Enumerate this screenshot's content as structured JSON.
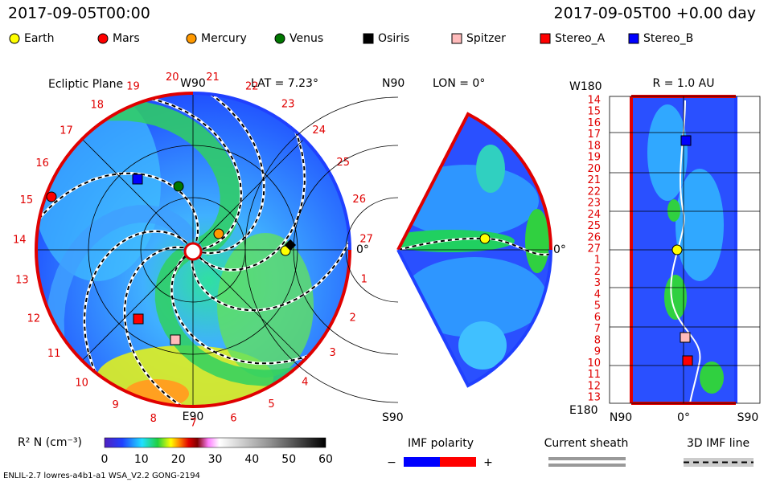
{
  "header": {
    "date": "2017-09-05T00:00",
    "time": "2017-09-05T00 +0.00 day"
  },
  "legend": [
    {
      "label": "Earth",
      "color": "#ffff00",
      "shape": "circle"
    },
    {
      "label": "Mars",
      "color": "#ff0000",
      "shape": "circle"
    },
    {
      "label": "Mercury",
      "color": "#ff9900",
      "shape": "circle"
    },
    {
      "label": "Venus",
      "color": "#007700",
      "shape": "circle"
    },
    {
      "label": "Osiris",
      "color": "#000000",
      "shape": "square"
    },
    {
      "label": "Spitzer",
      "color": "#ffbbbb",
      "shape": "square"
    },
    {
      "label": "Stereo_A",
      "color": "#ff0000",
      "shape": "square"
    },
    {
      "label": "Stereo_B",
      "color": "#0000ff",
      "shape": "square"
    }
  ],
  "ecliptic": {
    "title": "Ecliptic Plane",
    "lat": "LAT = 7.23°",
    "top": "W90",
    "bottom": "E90",
    "right": "0°",
    "day_labels": [
      "1",
      "2",
      "3",
      "4",
      "5",
      "6",
      "7",
      "8",
      "9",
      "10",
      "11",
      "12",
      "13",
      "14",
      "15",
      "16",
      "17",
      "18",
      "19",
      "20",
      "21",
      "22",
      "23",
      "24",
      "25",
      "26",
      "27"
    ]
  },
  "meridional": {
    "top": "N90",
    "lon": "LON = 0°",
    "right": "0°",
    "bottom": "S90"
  },
  "radial": {
    "title": "R = 1.0 AU",
    "top": "W180",
    "bottom": "E180",
    "left": "N90",
    "middle": "0°",
    "right": "S90",
    "day_labels": [
      "14",
      "15",
      "16",
      "17",
      "18",
      "19",
      "20",
      "21",
      "22",
      "23",
      "24",
      "25",
      "26",
      "27",
      "1",
      "2",
      "3",
      "4",
      "5",
      "6",
      "7",
      "8",
      "9",
      "10",
      "11",
      "12",
      "13"
    ]
  },
  "colorbar": {
    "label": "R² N (cm⁻³)",
    "ticks": [
      "0",
      "10",
      "20",
      "30",
      "40",
      "50",
      "60"
    ]
  },
  "imf": {
    "title": "IMF polarity",
    "minus": "−",
    "plus": "+"
  },
  "sheath": {
    "title": "Current sheath"
  },
  "imf_line": {
    "title": "3D IMF line"
  },
  "footer": "ENLIL-2.7 lowres-a4b1-a1 WSA_V2.2 GONG-2194"
}
